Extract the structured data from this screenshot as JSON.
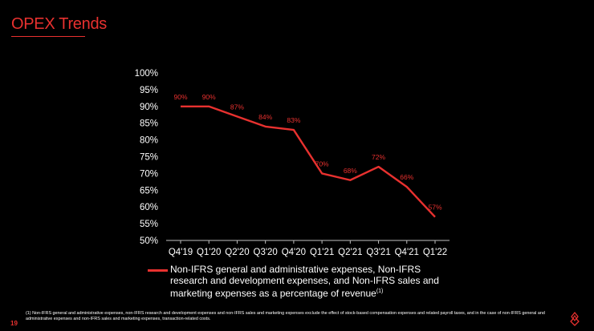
{
  "title": "OPEX Trends",
  "page_number": "19",
  "footnote": "(1) Non-IFRS general and administrative expenses, non-IFRS research and development expenses and non-IFRS sales and marketing expenses exclude the effect of stock-based compensation expenses and related payroll taxes, and in the case of non-IFRS general and administrative expenses and non-IFRS sales and marketing expenses, transaction-related costs.",
  "logo": "lightspeed-flame-logo",
  "colors": {
    "accent": "#e8312f",
    "background": "#000000",
    "text": "#ffffff"
  },
  "chart_data": {
    "type": "line",
    "title": "",
    "xlabel": "",
    "ylabel": "",
    "categories": [
      "Q4'19",
      "Q1'20",
      "Q2'20",
      "Q3'20",
      "Q4'20",
      "Q1'21",
      "Q2'21",
      "Q3'21",
      "Q4'21",
      "Q1'22"
    ],
    "series": [
      {
        "name": "Non-IFRS general and administrative expenses, Non-IFRS research and development expenses, and Non-IFRS sales and marketing expenses as a percentage of revenue",
        "superscript": "(1)",
        "values": [
          90,
          90,
          87,
          84,
          83,
          70,
          68,
          72,
          66,
          57
        ],
        "labels": [
          "90%",
          "90%",
          "87%",
          "84%",
          "83%",
          "70%",
          "68%",
          "72%",
          "66%",
          "57%"
        ]
      }
    ],
    "ylim": [
      50,
      100
    ],
    "yticks": [
      "50%",
      "55%",
      "60%",
      "65%",
      "70%",
      "75%",
      "80%",
      "85%",
      "90%",
      "95%",
      "100%"
    ],
    "grid": false,
    "legend_position": "bottom"
  }
}
